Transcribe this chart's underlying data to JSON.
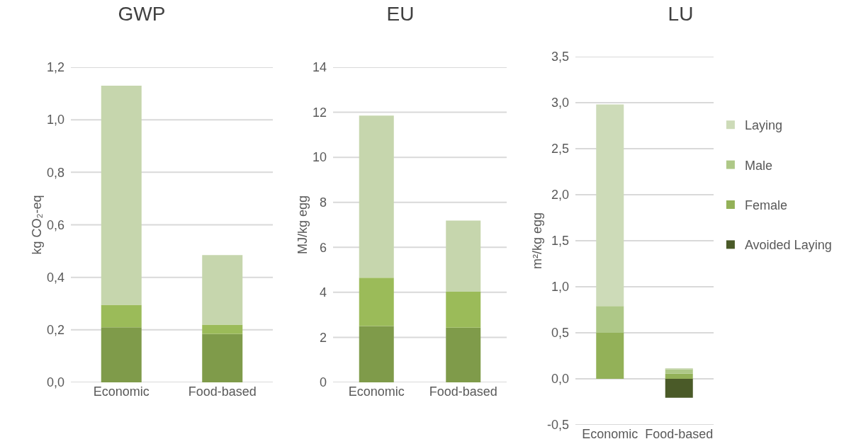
{
  "chart_data": [
    {
      "type": "bar",
      "stacked": true,
      "title": "GWP",
      "ylabel": "kg CO₂-eq",
      "categories": [
        "Economic",
        "Food-based"
      ],
      "series": [
        {
          "color": "#7f9b4a",
          "values": [
            0.21,
            0.185
          ]
        },
        {
          "color": "#9bbb59",
          "values": [
            0.085,
            0.035
          ]
        },
        {
          "color": "#c6d6ad",
          "values": [
            0.835,
            0.265
          ]
        }
      ],
      "ylim": [
        0,
        1.2
      ],
      "yticks": [
        {
          "value": 0,
          "label": "0,0"
        },
        {
          "value": 0.2,
          "label": "0,2"
        },
        {
          "value": 0.4,
          "label": "0,4"
        },
        {
          "value": 0.6,
          "label": "0,6"
        },
        {
          "value": 0.8,
          "label": "0,8"
        },
        {
          "value": 1,
          "label": "1,0"
        },
        {
          "value": 1.2,
          "label": "1,2"
        }
      ],
      "grid": "y",
      "legend": false
    },
    {
      "type": "bar",
      "stacked": true,
      "title": "EU",
      "ylabel": "MJ/kg egg",
      "categories": [
        "Economic",
        "Food-based"
      ],
      "series": [
        {
          "color": "#7f9b4a",
          "values": [
            2.5,
            2.43
          ]
        },
        {
          "color": "#9bbb59",
          "values": [
            2.15,
            1.6
          ]
        },
        {
          "color": "#c6d6ad",
          "values": [
            7.2,
            3.16
          ]
        }
      ],
      "ylim": [
        0,
        14
      ],
      "yticks": [
        0,
        2,
        4,
        6,
        8,
        10,
        12,
        14
      ],
      "grid": "y",
      "legend": false
    },
    {
      "type": "bar",
      "stacked": true,
      "title": "LU",
      "ylabel": "m²/kg egg",
      "categories": [
        "Economic",
        "Food-based"
      ],
      "series": [
        {
          "name": "Female",
          "color": "#93b158",
          "values": [
            0.5,
            0.055
          ]
        },
        {
          "name": "Male",
          "color": "#aec887",
          "values": [
            0.29,
            0.05
          ]
        },
        {
          "name": "Laying",
          "color": "#cddbb8",
          "values": [
            2.19,
            0.005
          ]
        },
        {
          "name": "Avoided Laying",
          "color": "#4a5a28",
          "values": [
            0,
            -0.205
          ]
        }
      ],
      "ylim": [
        -0.5,
        3.5
      ],
      "yticks": [
        {
          "value": -0.5,
          "label": "-0,5"
        },
        {
          "value": 0,
          "label": "0,0"
        },
        {
          "value": 0.5,
          "label": "0,5"
        },
        {
          "value": 1,
          "label": "1,0"
        },
        {
          "value": 1.5,
          "label": "1,5"
        },
        {
          "value": 2,
          "label": "2,0"
        },
        {
          "value": 2.5,
          "label": "2,5"
        },
        {
          "value": 3,
          "label": "3,0"
        },
        {
          "value": 3.5,
          "label": "3,5"
        }
      ],
      "grid": "y",
      "legend": "right"
    }
  ]
}
